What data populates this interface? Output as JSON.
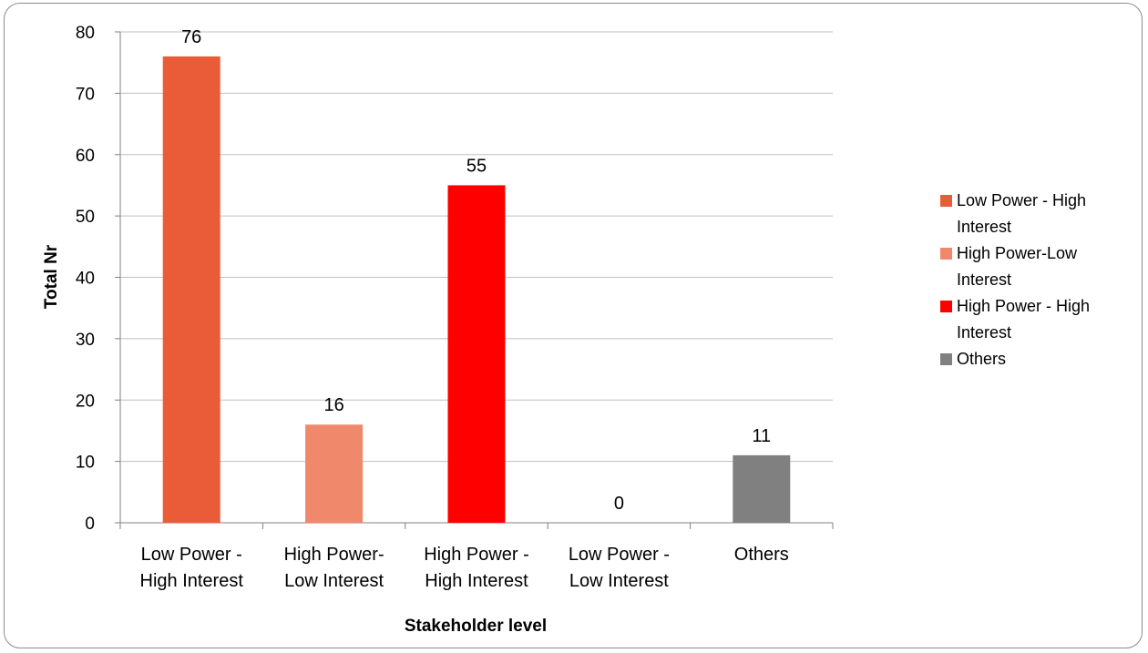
{
  "chart_data": {
    "type": "bar",
    "categories": [
      [
        "Low Power -",
        "High Interest"
      ],
      [
        "High Power-",
        "Low Interest"
      ],
      [
        "High Power -",
        "High Interest"
      ],
      [
        "Low Power -",
        "Low Interest"
      ],
      [
        "Others"
      ]
    ],
    "values": [
      76,
      16,
      55,
      0,
      11
    ],
    "bar_colors": [
      "#e95c37",
      "#f0886b",
      "#ff0000",
      "#e95c37",
      "#808080"
    ],
    "xlabel": "Stakeholder level",
    "ylabel": "Total Nr",
    "ylim": [
      0,
      80
    ],
    "yticks": [
      0,
      10,
      20,
      30,
      40,
      50,
      60,
      70,
      80
    ],
    "grid": true,
    "legend_position": "right",
    "legend": [
      {
        "label": [
          "Low Power - High",
          "Interest"
        ],
        "color": "#e95c37"
      },
      {
        "label": [
          "High Power-Low",
          "Interest"
        ],
        "color": "#f0886b"
      },
      {
        "label": [
          "High Power - High",
          "Interest"
        ],
        "color": "#ff0000"
      },
      {
        "label": [
          "Others"
        ],
        "color": "#808080"
      }
    ],
    "data_labels": true
  }
}
